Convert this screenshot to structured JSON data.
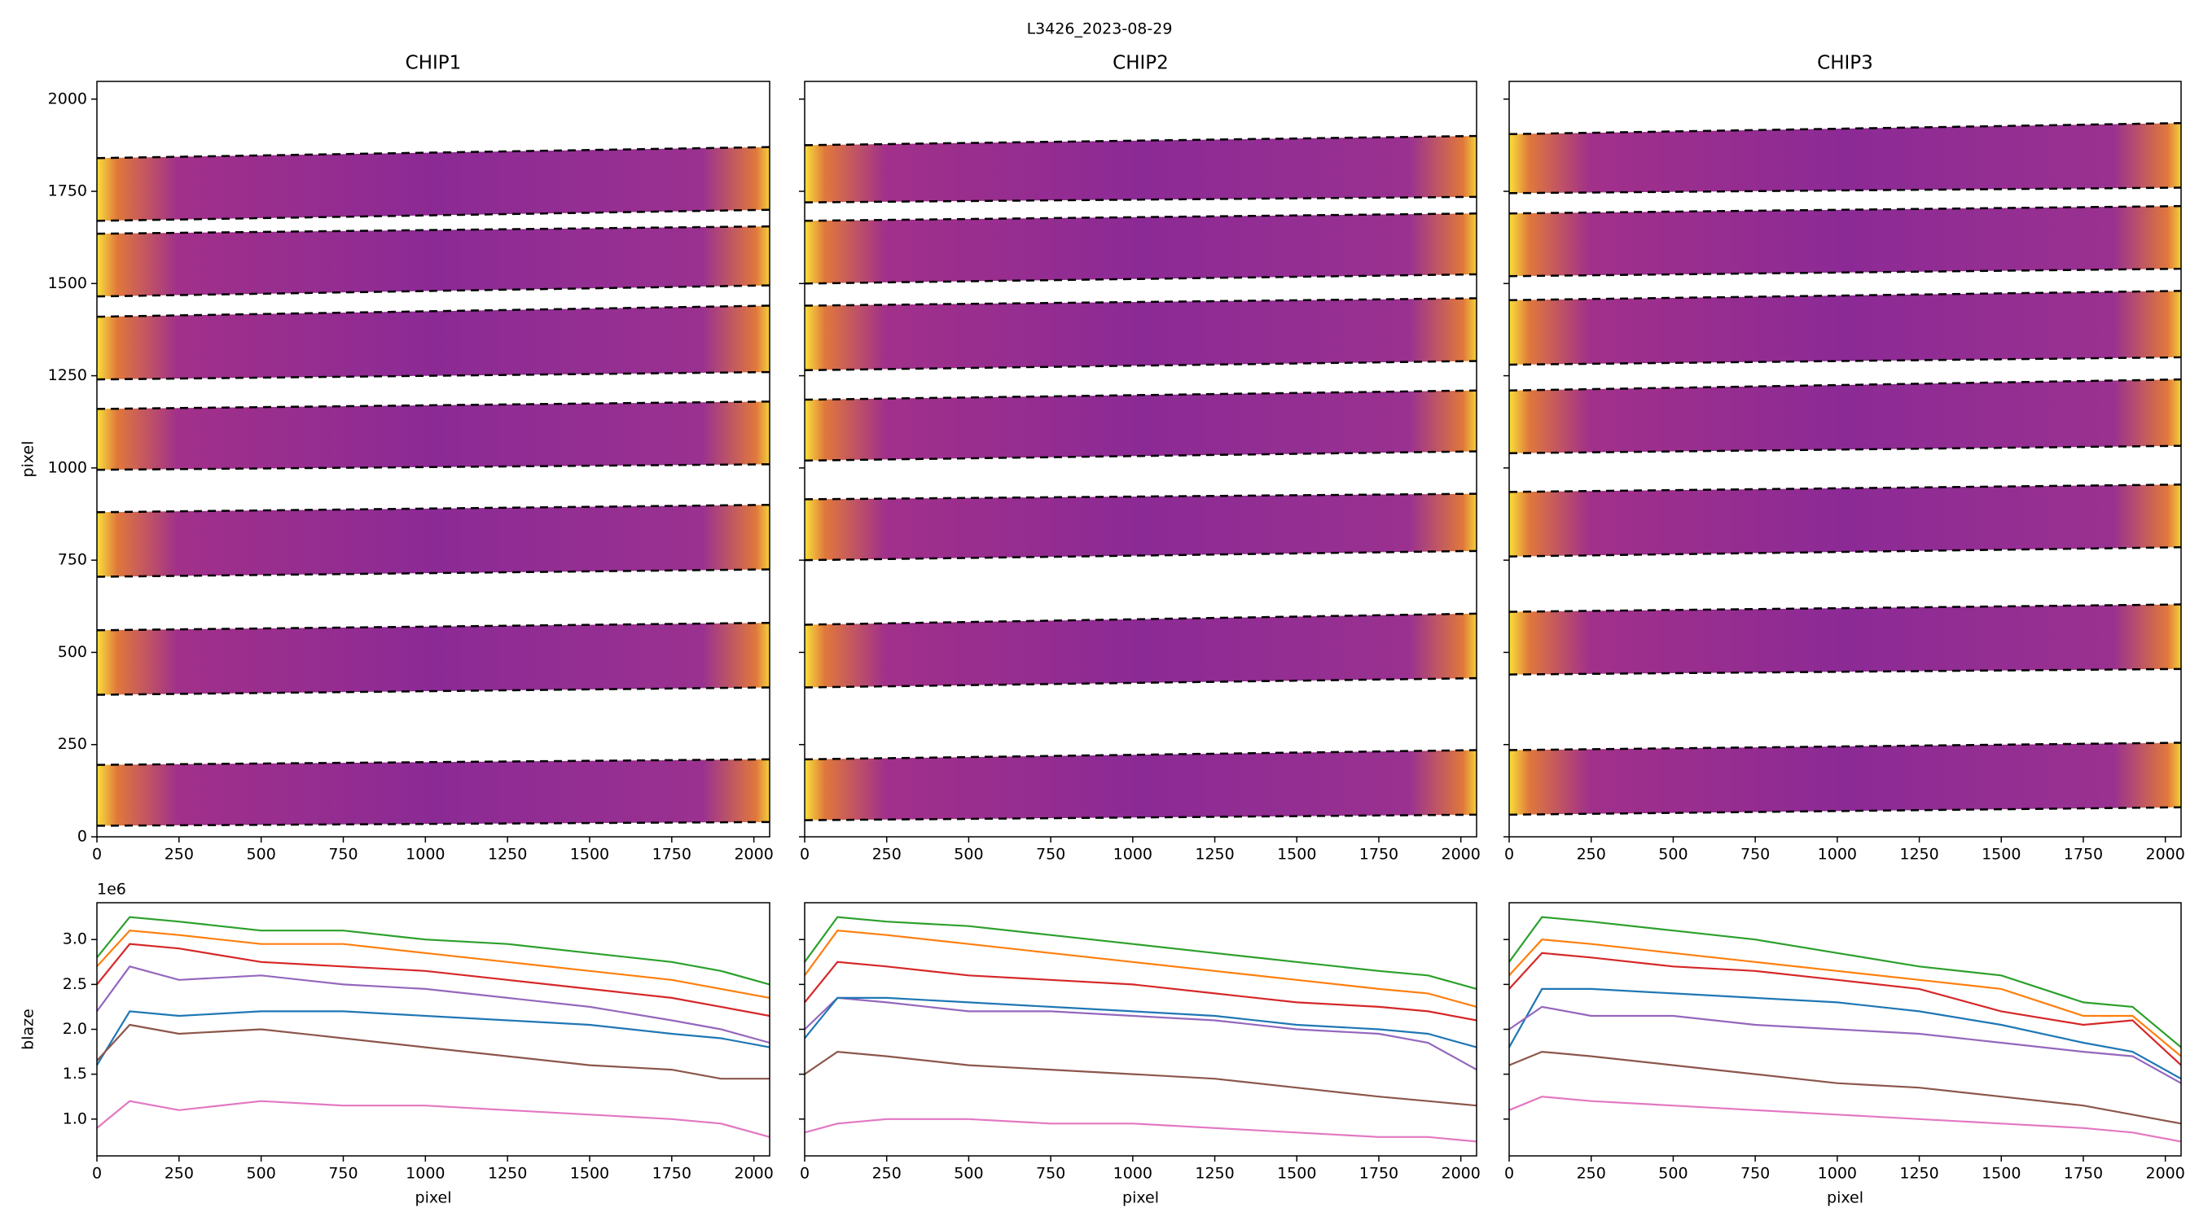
{
  "title": "L3426_2023-08-29",
  "chart_data": [
    {
      "type": "image",
      "title": "CHIP1",
      "ylabel": "pixel",
      "xlim": [
        0,
        2048
      ],
      "ylim": [
        0,
        2048
      ],
      "xticks": [
        0,
        250,
        500,
        750,
        1000,
        1250,
        1500,
        1750,
        2000
      ],
      "yticks": [
        0,
        250,
        500,
        750,
        1000,
        1250,
        1500,
        1750,
        2000
      ],
      "orders": [
        {
          "lower": [
            30,
            40
          ],
          "upper": [
            195,
            210
          ]
        },
        {
          "lower": [
            385,
            405
          ],
          "upper": [
            560,
            580
          ]
        },
        {
          "lower": [
            705,
            725
          ],
          "upper": [
            880,
            900
          ]
        },
        {
          "lower": [
            995,
            1010
          ],
          "upper": [
            1160,
            1180
          ]
        },
        {
          "lower": [
            1240,
            1260
          ],
          "upper": [
            1410,
            1440
          ]
        },
        {
          "lower": [
            1465,
            1495
          ],
          "upper": [
            1635,
            1655
          ]
        },
        {
          "lower": [
            1670,
            1700
          ],
          "upper": [
            1840,
            1870
          ]
        }
      ]
    },
    {
      "type": "image",
      "title": "CHIP2",
      "xlim": [
        0,
        2048
      ],
      "ylim": [
        0,
        2048
      ],
      "xticks": [
        0,
        250,
        500,
        750,
        1000,
        1250,
        1500,
        1750,
        2000
      ],
      "yticks": [
        0,
        250,
        500,
        750,
        1000,
        1250,
        1500,
        1750,
        2000
      ],
      "orders": [
        {
          "lower": [
            45,
            60
          ],
          "upper": [
            210,
            235
          ]
        },
        {
          "lower": [
            405,
            430
          ],
          "upper": [
            575,
            605
          ]
        },
        {
          "lower": [
            750,
            775
          ],
          "upper": [
            915,
            930
          ]
        },
        {
          "lower": [
            1020,
            1045
          ],
          "upper": [
            1185,
            1210
          ]
        },
        {
          "lower": [
            1265,
            1290
          ],
          "upper": [
            1440,
            1460
          ]
        },
        {
          "lower": [
            1500,
            1525
          ],
          "upper": [
            1670,
            1690
          ]
        },
        {
          "lower": [
            1720,
            1735
          ],
          "upper": [
            1875,
            1900
          ]
        }
      ]
    },
    {
      "type": "image",
      "title": "CHIP3",
      "xlim": [
        0,
        2048
      ],
      "ylim": [
        0,
        2048
      ],
      "xticks": [
        0,
        250,
        500,
        750,
        1000,
        1250,
        1500,
        1750,
        2000
      ],
      "yticks": [
        0,
        250,
        500,
        750,
        1000,
        1250,
        1500,
        1750,
        2000
      ],
      "orders": [
        {
          "lower": [
            60,
            80
          ],
          "upper": [
            235,
            255
          ]
        },
        {
          "lower": [
            440,
            455
          ],
          "upper": [
            610,
            630
          ]
        },
        {
          "lower": [
            760,
            785
          ],
          "upper": [
            935,
            955
          ]
        },
        {
          "lower": [
            1040,
            1060
          ],
          "upper": [
            1210,
            1240
          ]
        },
        {
          "lower": [
            1280,
            1300
          ],
          "upper": [
            1455,
            1480
          ]
        },
        {
          "lower": [
            1520,
            1540
          ],
          "upper": [
            1690,
            1710
          ]
        },
        {
          "lower": [
            1745,
            1760
          ],
          "upper": [
            1905,
            1935
          ]
        }
      ]
    },
    {
      "type": "line",
      "xlabel": "pixel",
      "ylabel": "blaze",
      "offset_text": "1e6",
      "xlim": [
        0,
        2048
      ],
      "ylim": [
        0.59,
        3.41
      ],
      "xticks": [
        0,
        250,
        500,
        750,
        1000,
        1250,
        1500,
        1750,
        2000
      ],
      "yticks": [
        {
          "value": 1,
          "label": "1.0"
        },
        1.5,
        {
          "value": 2,
          "label": "2.0"
        },
        2.5,
        {
          "value": 3,
          "label": "3.0"
        }
      ],
      "x": [
        0,
        100,
        250,
        500,
        750,
        1000,
        1250,
        1500,
        1750,
        1900,
        2048
      ],
      "series": [
        {
          "color": "#2ca02c",
          "values": [
            2.8,
            3.25,
            3.2,
            3.1,
            3.1,
            3.0,
            2.95,
            2.85,
            2.75,
            2.65,
            2.5
          ]
        },
        {
          "color": "#ff7f0e",
          "values": [
            2.7,
            3.1,
            3.05,
            2.95,
            2.95,
            2.85,
            2.75,
            2.65,
            2.55,
            2.45,
            2.35
          ]
        },
        {
          "color": "#d62728",
          "values": [
            2.5,
            2.95,
            2.9,
            2.75,
            2.7,
            2.65,
            2.55,
            2.45,
            2.35,
            2.25,
            2.15
          ]
        },
        {
          "color": "#9467bd",
          "values": [
            2.2,
            2.7,
            2.55,
            2.6,
            2.5,
            2.45,
            2.35,
            2.25,
            2.1,
            2.0,
            1.85
          ]
        },
        {
          "color": "#1f77b4",
          "values": [
            1.6,
            2.2,
            2.15,
            2.2,
            2.2,
            2.15,
            2.1,
            2.05,
            1.95,
            1.9,
            1.8
          ]
        },
        {
          "color": "#8c564b",
          "values": [
            1.65,
            2.05,
            1.95,
            2.0,
            1.9,
            1.8,
            1.7,
            1.6,
            1.55,
            1.45,
            1.45
          ]
        },
        {
          "color": "#e377c2",
          "values": [
            0.9,
            1.2,
            1.1,
            1.2,
            1.15,
            1.15,
            1.1,
            1.05,
            1.0,
            0.95,
            0.8
          ]
        }
      ]
    },
    {
      "type": "line",
      "xlabel": "pixel",
      "xlim": [
        0,
        2048
      ],
      "ylim": [
        0.59,
        3.41
      ],
      "xticks": [
        0,
        250,
        500,
        750,
        1000,
        1250,
        1500,
        1750,
        2000
      ],
      "yticks": [
        1,
        1.5,
        2,
        2.5,
        3
      ],
      "x": [
        0,
        100,
        250,
        500,
        750,
        1000,
        1250,
        1500,
        1750,
        1900,
        2048
      ],
      "series": [
        {
          "color": "#2ca02c",
          "values": [
            2.75,
            3.25,
            3.2,
            3.15,
            3.05,
            2.95,
            2.85,
            2.75,
            2.65,
            2.6,
            2.45
          ]
        },
        {
          "color": "#ff7f0e",
          "values": [
            2.6,
            3.1,
            3.05,
            2.95,
            2.85,
            2.75,
            2.65,
            2.55,
            2.45,
            2.4,
            2.25
          ]
        },
        {
          "color": "#d62728",
          "values": [
            2.3,
            2.75,
            2.7,
            2.6,
            2.55,
            2.5,
            2.4,
            2.3,
            2.25,
            2.2,
            2.1
          ]
        },
        {
          "color": "#9467bd",
          "values": [
            2.0,
            2.35,
            2.3,
            2.2,
            2.2,
            2.15,
            2.1,
            2.0,
            1.95,
            1.85,
            1.55
          ]
        },
        {
          "color": "#1f77b4",
          "values": [
            1.9,
            2.35,
            2.35,
            2.3,
            2.25,
            2.2,
            2.15,
            2.05,
            2.0,
            1.95,
            1.8
          ]
        },
        {
          "color": "#8c564b",
          "values": [
            1.5,
            1.75,
            1.7,
            1.6,
            1.55,
            1.5,
            1.45,
            1.35,
            1.25,
            1.2,
            1.15
          ]
        },
        {
          "color": "#e377c2",
          "values": [
            0.85,
            0.95,
            1.0,
            1.0,
            0.95,
            0.95,
            0.9,
            0.85,
            0.8,
            0.8,
            0.75
          ]
        }
      ]
    },
    {
      "type": "line",
      "xlabel": "pixel",
      "xlim": [
        0,
        2048
      ],
      "ylim": [
        0.59,
        3.41
      ],
      "xticks": [
        0,
        250,
        500,
        750,
        1000,
        1250,
        1500,
        1750,
        2000
      ],
      "yticks": [
        1,
        1.5,
        2,
        2.5,
        3
      ],
      "x": [
        0,
        100,
        250,
        500,
        750,
        1000,
        1250,
        1500,
        1750,
        1900,
        2048
      ],
      "series": [
        {
          "color": "#2ca02c",
          "values": [
            2.75,
            3.25,
            3.2,
            3.1,
            3.0,
            2.85,
            2.7,
            2.6,
            2.3,
            2.25,
            1.8
          ]
        },
        {
          "color": "#ff7f0e",
          "values": [
            2.6,
            3.0,
            2.95,
            2.85,
            2.75,
            2.65,
            2.55,
            2.45,
            2.15,
            2.15,
            1.7
          ]
        },
        {
          "color": "#d62728",
          "values": [
            2.45,
            2.85,
            2.8,
            2.7,
            2.65,
            2.55,
            2.45,
            2.2,
            2.05,
            2.1,
            1.6
          ]
        },
        {
          "color": "#1f77b4",
          "values": [
            1.8,
            2.45,
            2.45,
            2.4,
            2.35,
            2.3,
            2.2,
            2.05,
            1.85,
            1.75,
            1.45
          ]
        },
        {
          "color": "#9467bd",
          "values": [
            2.0,
            2.25,
            2.15,
            2.15,
            2.05,
            2.0,
            1.95,
            1.85,
            1.75,
            1.7,
            1.4
          ]
        },
        {
          "color": "#8c564b",
          "values": [
            1.6,
            1.75,
            1.7,
            1.6,
            1.5,
            1.4,
            1.35,
            1.25,
            1.15,
            1.05,
            0.95
          ]
        },
        {
          "color": "#e377c2",
          "values": [
            1.1,
            1.25,
            1.2,
            1.15,
            1.1,
            1.05,
            1.0,
            0.95,
            0.9,
            0.85,
            0.75
          ]
        }
      ]
    }
  ]
}
